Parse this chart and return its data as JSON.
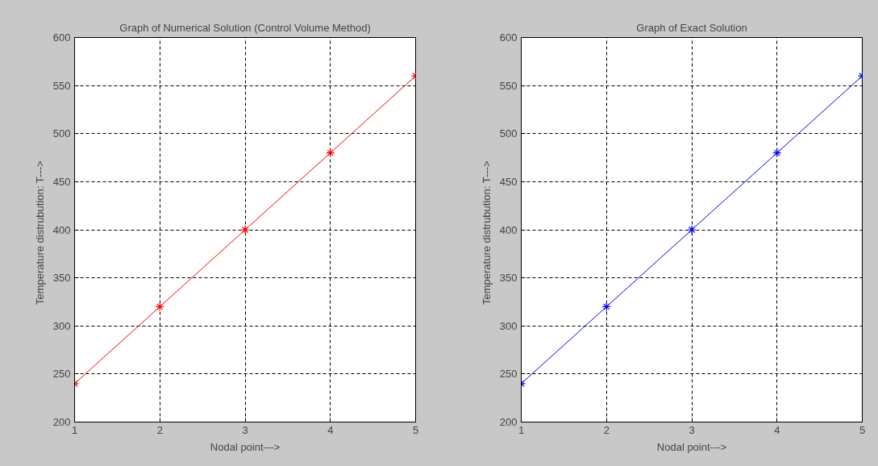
{
  "chart_data": [
    {
      "type": "line",
      "title": "Graph of Numerical Solution (Control Volume Method)",
      "xlabel": "Nodal point--->",
      "ylabel": "Temperature distrubution:   T--->",
      "x": [
        1,
        2,
        3,
        4,
        5
      ],
      "series": [
        {
          "color": "#ff0000",
          "values": [
            240,
            320,
            400,
            480,
            560
          ]
        }
      ],
      "xlim": [
        1,
        5
      ],
      "xticks": [
        1,
        2,
        3,
        4,
        5
      ],
      "ylim": [
        200,
        600
      ],
      "yticks": [
        200,
        250,
        300,
        350,
        400,
        450,
        500,
        550,
        600
      ],
      "grid": true,
      "marker": "cross",
      "line_style": "solid"
    },
    {
      "type": "line",
      "title": "Graph of Exact Solution",
      "xlabel": "Nodal point--->",
      "ylabel": "Temperature distrubution:   T--->",
      "x": [
        1,
        2,
        3,
        4,
        5
      ],
      "series": [
        {
          "color": "#0000ff",
          "values": [
            240,
            320,
            400,
            480,
            560
          ]
        }
      ],
      "xlim": [
        1,
        5
      ],
      "xticks": [
        1,
        2,
        3,
        4,
        5
      ],
      "ylim": [
        200,
        600
      ],
      "yticks": [
        200,
        250,
        300,
        350,
        400,
        450,
        500,
        550,
        600
      ],
      "grid": true,
      "marker": "cross",
      "line_style": "solid"
    }
  ]
}
